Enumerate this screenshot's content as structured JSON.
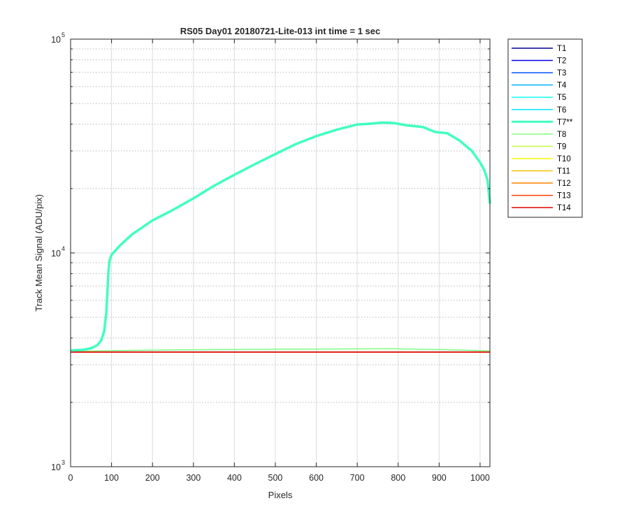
{
  "chart_data": {
    "type": "line",
    "title": "RS05 Day01 20180721-Lite-013 int time = 1 sec",
    "xlabel": "Pixels",
    "ylabel": "Track Mean Signal (ADU/pix)",
    "xlim": [
      0,
      1024
    ],
    "ylim": [
      1000,
      100000
    ],
    "yscale": "log",
    "grid": true,
    "x_ticks": [
      0,
      100,
      200,
      300,
      400,
      500,
      600,
      700,
      800,
      900,
      1000
    ],
    "x_tick_labels": [
      "0",
      "100",
      "200",
      "300",
      "400",
      "500",
      "600",
      "700",
      "800",
      "900",
      "1000"
    ],
    "y_ticks": [
      {
        "value": 1000,
        "base": "10",
        "exp": "3"
      },
      {
        "value": 10000,
        "base": "10",
        "exp": "4"
      },
      {
        "value": 100000,
        "base": "10",
        "exp": "5"
      }
    ],
    "legend_position": "outside top-right",
    "series": [
      {
        "name": "T1",
        "color": "#00008f",
        "x": [
          0,
          1024
        ],
        "y": [
          3440,
          3440
        ]
      },
      {
        "name": "T2",
        "color": "#0000ef",
        "x": [
          0,
          1024
        ],
        "y": [
          3440,
          3440
        ]
      },
      {
        "name": "T3",
        "color": "#0050ff",
        "x": [
          0,
          1024
        ],
        "y": [
          3440,
          3440
        ]
      },
      {
        "name": "T4",
        "color": "#00afff",
        "x": [
          0,
          1024
        ],
        "y": [
          3440,
          3440
        ]
      },
      {
        "name": "T5",
        "color": "#10ffef",
        "x": [
          0,
          1024
        ],
        "y": [
          3440,
          3440
        ]
      },
      {
        "name": "T6",
        "color": "#00e5ff",
        "x": [
          0,
          1024
        ],
        "y": [
          3445,
          3445
        ]
      },
      {
        "name": "T7**",
        "color": "#40ffbf",
        "x": [
          0,
          30,
          50,
          65,
          75,
          82,
          87,
          90,
          92,
          95,
          100,
          120,
          150,
          200,
          250,
          300,
          350,
          400,
          450,
          500,
          550,
          600,
          650,
          700,
          730,
          760,
          790,
          820,
          860,
          890,
          920,
          950,
          980,
          1000,
          1010,
          1018,
          1024
        ],
        "y": [
          3500,
          3520,
          3580,
          3700,
          3900,
          4300,
          5200,
          6500,
          8000,
          9200,
          9800,
          10800,
          12200,
          14200,
          15900,
          18000,
          20600,
          23200,
          26000,
          29000,
          32300,
          35200,
          37700,
          39900,
          40200,
          40700,
          40500,
          39500,
          38800,
          36800,
          36300,
          33500,
          30000,
          26500,
          24500,
          22000,
          17000
        ]
      },
      {
        "name": "T8",
        "color": "#80ff80",
        "x": [
          0,
          100,
          200,
          300,
          400,
          500,
          600,
          700,
          780,
          900,
          1024
        ],
        "y": [
          3460,
          3490,
          3510,
          3525,
          3535,
          3545,
          3550,
          3555,
          3565,
          3535,
          3480
        ]
      },
      {
        "name": "T9",
        "color": "#bfff40",
        "x": [
          0,
          1024
        ],
        "y": [
          3440,
          3440
        ]
      },
      {
        "name": "T10",
        "color": "#ffff00",
        "x": [
          0,
          1024
        ],
        "y": [
          3440,
          3440
        ]
      },
      {
        "name": "T11",
        "color": "#ffbf00",
        "x": [
          0,
          1024
        ],
        "y": [
          3440,
          3440
        ]
      },
      {
        "name": "T12",
        "color": "#ff8000",
        "x": [
          0,
          1024
        ],
        "y": [
          3440,
          3440
        ]
      },
      {
        "name": "T13",
        "color": "#ff4000",
        "x": [
          0,
          1024
        ],
        "y": [
          3438,
          3438
        ]
      },
      {
        "name": "T14",
        "color": "#e00000",
        "x": [
          0,
          1024
        ],
        "y": [
          3435,
          3435
        ]
      }
    ]
  }
}
